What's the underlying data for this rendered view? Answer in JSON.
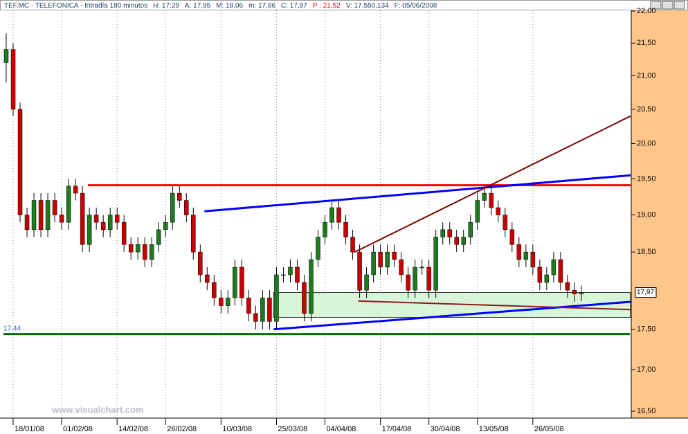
{
  "chart_data": {
    "type": "candlestick",
    "title_parts": [
      "TEF.MC - TELEFONICA - Intradía 180 minutos",
      "H: 17:29",
      "A: 17,95",
      "M: 18,06",
      "m: 17,86",
      "C: 17,97",
      "P : 21,52",
      "V: 17.550.134",
      "F: 05/06/2008"
    ],
    "watermark": "www.visualchart.com",
    "log_scale": true,
    "grid": true,
    "up_color": "#1e7a1e",
    "down_color": "#c80000",
    "wick_color": "#000000",
    "ylim": [
      16.5,
      22
    ],
    "yticks": [
      {
        "value": 22,
        "label": "22,00"
      },
      {
        "value": 21.5,
        "label": "21,50"
      },
      {
        "value": 21,
        "label": "21,00"
      },
      {
        "value": 20.5,
        "label": "20,50"
      },
      {
        "value": 20,
        "label": "20,00"
      },
      {
        "value": 19.5,
        "label": "19,50"
      },
      {
        "value": 19,
        "label": "19,00"
      },
      {
        "value": 18.5,
        "label": "18,50"
      },
      {
        "value": 17.5,
        "label": "17,50"
      },
      {
        "value": 17,
        "label": "17,00"
      },
      {
        "value": 16.5,
        "label": "16,50"
      }
    ],
    "xlim": [
      -0.4,
      90.2
    ],
    "categories": [
      null,
      "18/01/08",
      null,
      null,
      null,
      null,
      null,
      null,
      "01/02/08",
      null,
      null,
      null,
      null,
      null,
      null,
      null,
      "14/02/08",
      null,
      null,
      null,
      null,
      null,
      null,
      "26/02/08",
      null,
      null,
      null,
      null,
      null,
      null,
      null,
      "10/03/08",
      null,
      null,
      null,
      null,
      null,
      null,
      null,
      "25/03/08",
      null,
      null,
      null,
      null,
      null,
      null,
      "04/04/08",
      null,
      null,
      null,
      null,
      null,
      null,
      null,
      "17/04/08",
      null,
      null,
      null,
      null,
      null,
      null,
      "30/04/08",
      null,
      null,
      null,
      null,
      null,
      null,
      "13/05/08",
      null,
      null,
      null,
      null,
      null,
      null,
      null,
      "26/05/08",
      null,
      null,
      null,
      null,
      null,
      null,
      null
    ],
    "open": [
      21.2,
      21.4,
      20.5,
      19.0,
      18.8,
      19.2,
      18.8,
      19.2,
      19.0,
      18.9,
      19.4,
      19.3,
      18.6,
      19.0,
      18.9,
      18.8,
      19.0,
      18.9,
      18.6,
      18.5,
      18.6,
      18.4,
      18.6,
      18.8,
      18.9,
      19.3,
      19.2,
      19.0,
      18.5,
      18.2,
      18.1,
      17.9,
      17.8,
      17.9,
      18.3,
      17.9,
      17.7,
      17.6,
      17.9,
      17.6,
      18.2,
      18.2,
      18.3,
      18.1,
      17.7,
      18.4,
      18.7,
      18.9,
      19.1,
      18.9,
      18.7,
      18.5,
      18.0,
      18.2,
      18.5,
      18.3,
      18.5,
      18.4,
      18.2,
      18.0,
      18.3,
      18.3,
      18.0,
      18.7,
      18.8,
      18.7,
      18.6,
      18.7,
      18.9,
      19.2,
      19.3,
      19.1,
      19.0,
      18.8,
      18.6,
      18.4,
      18.5,
      18.3,
      18.1,
      18.2,
      18.4,
      18.1,
      18.0,
      17.95
    ],
    "high": [
      21.65,
      21.5,
      20.6,
      19.1,
      19.3,
      19.3,
      19.3,
      19.3,
      19.1,
      19.5,
      19.5,
      19.4,
      19.1,
      19.1,
      19.0,
      19.1,
      19.1,
      19.0,
      18.7,
      18.7,
      18.7,
      18.7,
      18.9,
      19.0,
      19.4,
      19.4,
      19.3,
      19.1,
      18.6,
      18.3,
      18.2,
      18.0,
      18.0,
      18.4,
      18.4,
      18.0,
      17.8,
      18.0,
      18.0,
      18.3,
      18.3,
      18.4,
      18.4,
      18.2,
      18.5,
      18.8,
      19.0,
      19.2,
      19.2,
      19.0,
      18.8,
      18.6,
      18.3,
      18.6,
      18.6,
      18.6,
      18.6,
      18.5,
      18.3,
      18.4,
      18.4,
      18.4,
      18.8,
      18.9,
      18.9,
      18.8,
      18.8,
      19.0,
      19.3,
      19.4,
      19.4,
      19.2,
      19.1,
      18.9,
      18.7,
      18.6,
      18.6,
      18.4,
      18.3,
      18.5,
      18.5,
      18.2,
      18.1,
      18.06
    ],
    "low": [
      20.9,
      20.4,
      18.9,
      18.7,
      18.7,
      18.7,
      18.7,
      18.9,
      18.8,
      18.8,
      19.2,
      18.5,
      18.5,
      18.8,
      18.7,
      18.7,
      18.8,
      18.5,
      18.4,
      18.4,
      18.3,
      18.3,
      18.5,
      18.7,
      18.8,
      19.1,
      18.9,
      18.4,
      18.1,
      18.0,
      17.8,
      17.7,
      17.7,
      17.8,
      17.8,
      17.6,
      17.5,
      17.5,
      17.5,
      17.5,
      18.1,
      18.1,
      18.0,
      17.6,
      17.6,
      18.3,
      18.6,
      18.8,
      18.8,
      18.6,
      18.4,
      17.9,
      17.9,
      18.1,
      18.2,
      18.2,
      18.3,
      18.1,
      17.9,
      17.9,
      18.2,
      17.9,
      17.9,
      18.6,
      18.6,
      18.5,
      18.5,
      18.6,
      18.8,
      19.1,
      19.0,
      18.9,
      18.7,
      18.5,
      18.3,
      18.3,
      18.2,
      18.0,
      18.0,
      18.1,
      18.0,
      17.9,
      17.85,
      17.86
    ],
    "close": [
      21.4,
      20.5,
      19.0,
      18.8,
      19.2,
      18.8,
      19.2,
      19.0,
      18.9,
      19.4,
      19.3,
      18.6,
      19.0,
      18.9,
      18.8,
      19.0,
      18.9,
      18.6,
      18.5,
      18.6,
      18.4,
      18.6,
      18.8,
      18.9,
      19.3,
      19.2,
      19.0,
      18.5,
      18.2,
      18.1,
      17.9,
      17.8,
      17.9,
      18.3,
      17.9,
      17.7,
      17.6,
      17.9,
      17.6,
      18.2,
      18.2,
      18.3,
      18.1,
      17.7,
      18.4,
      18.7,
      18.9,
      19.1,
      18.9,
      18.7,
      18.5,
      18.0,
      18.2,
      18.5,
      18.3,
      18.5,
      18.4,
      18.2,
      18.0,
      18.3,
      18.3,
      18.0,
      18.7,
      18.8,
      18.7,
      18.6,
      18.7,
      18.9,
      19.2,
      19.3,
      19.1,
      19.0,
      18.8,
      18.6,
      18.4,
      18.5,
      18.3,
      18.1,
      18.2,
      18.4,
      18.1,
      18.0,
      17.95,
      17.97
    ],
    "last_price": {
      "value": 17.97,
      "label": "17,97"
    },
    "drawings": [
      {
        "color": "#ff0000",
        "x": [
          11.8,
          90.1
        ],
        "y": [
          19.41,
          19.41
        ]
      },
      {
        "color": "#0000ff",
        "x": [
          28.6,
          90.1
        ],
        "y": [
          19.05,
          19.55
        ]
      },
      {
        "color": "#7a0000",
        "x": [
          50.3,
          90.1
        ],
        "y": [
          18.5,
          20.4
        ]
      },
      {
        "color": "#0000ff",
        "x": [
          38.6,
          90.1
        ],
        "y": [
          17.5,
          17.85
        ]
      },
      {
        "color": "#8b1a1a",
        "x": [
          50.8,
          90.1
        ],
        "y": [
          17.86,
          17.75
        ]
      }
    ],
    "level": {
      "color": "#007000",
      "value": 17.44,
      "label": "17.44"
    },
    "zone": {
      "color": "#d8f5d8",
      "x": [
        38.6,
        90.1
      ],
      "y": [
        17.65,
        17.97
      ]
    }
  }
}
